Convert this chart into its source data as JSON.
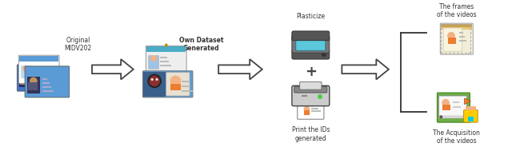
{
  "bg_color": "#ffffff",
  "labels": {
    "step1": "Original\nMIDV202",
    "step2": "Own Dataset\nGenerated",
    "step3_top": "Print the IDs\ngenerated",
    "step3_bottom": "Plasticize",
    "step4_top": "The Acquisition\nof the videos",
    "step4_bottom": "The frames\nof the videos"
  },
  "text_color": "#333333",
  "arrow_fill": "#ffffff",
  "arrow_edge": "#333333",
  "card_colors": {
    "blue": "#5B9BD5",
    "blue2": "#4472C4",
    "light_blue": "#9DC3E6",
    "green": "#5BA35B",
    "teal": "#4BACC6",
    "orange": "#ED7D31",
    "skin": "#F4B183",
    "dark": "#404040",
    "gray_body": "#aaaaaa",
    "gray_dark": "#666666",
    "scanner_blue": "#5BC8DC",
    "beige": "#F2EDD8",
    "gold": "#C8A050"
  }
}
